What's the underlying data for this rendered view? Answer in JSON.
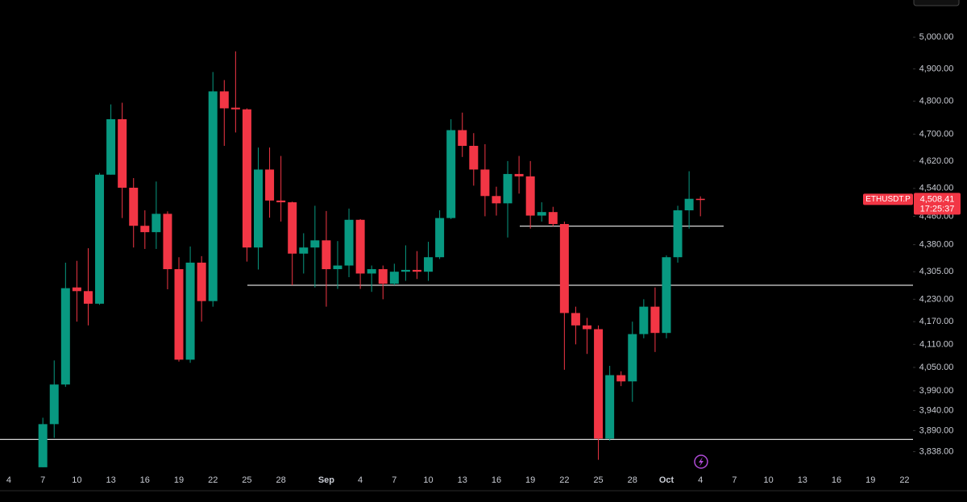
{
  "chart_data": {
    "type": "candlestick",
    "log_scale": true,
    "up_color": "#089981",
    "down_color": "#f23645",
    "x": [
      3,
      4,
      5,
      6,
      7,
      8,
      9,
      10,
      11,
      12,
      13,
      14,
      15,
      16,
      17,
      18,
      19,
      20,
      21,
      22,
      23,
      24,
      25,
      26,
      27,
      28,
      29,
      30,
      31,
      32,
      33,
      34,
      35,
      36,
      37,
      38,
      39,
      40,
      41,
      42,
      43,
      44,
      45,
      46,
      47,
      48,
      49,
      50,
      51,
      52,
      53,
      54,
      55,
      56,
      57,
      58,
      59,
      60,
      61
    ],
    "open": [
      3800,
      3906,
      4006,
      4262,
      4252,
      4218,
      4580,
      4745,
      4542,
      4433,
      4415,
      4467,
      4312,
      4070,
      4330,
      4225,
      4830,
      4780,
      4775,
      4372,
      4595,
      4505,
      4500,
      4355,
      4372,
      4392,
      4312,
      4322,
      4450,
      4300,
      4312,
      4272,
      4305,
      4310,
      4305,
      4345,
      4455,
      4712,
      4665,
      4595,
      4518,
      4497,
      4582,
      4575,
      4462,
      4472,
      4438,
      4193,
      4160,
      4150,
      3870,
      4030,
      4014,
      4137,
      4210,
      4140,
      4345,
      4477,
      4510
    ],
    "high": [
      3922,
      4068,
      4330,
      4335,
      4370,
      4585,
      4790,
      4795,
      4570,
      4477,
      4560,
      4474,
      4345,
      4375,
      4348,
      4890,
      4865,
      4955,
      4778,
      4660,
      4660,
      4635,
      4502,
      4412,
      4490,
      4475,
      4390,
      4482,
      4452,
      4322,
      4322,
      4327,
      4378,
      4362,
      4388,
      4477,
      4745,
      4765,
      4703,
      4670,
      4545,
      4620,
      4635,
      4620,
      4500,
      4487,
      4445,
      4210,
      4180,
      4160,
      4054,
      4040,
      4170,
      4230,
      4262,
      4350,
      4490,
      4590,
      4517
    ],
    "low": [
      3800,
      3872,
      4000,
      4170,
      4160,
      4215,
      4580,
      4455,
      4372,
      4368,
      4368,
      4257,
      4065,
      4062,
      4170,
      4210,
      4665,
      4705,
      4333,
      4311,
      4456,
      4445,
      4268,
      4300,
      4262,
      4210,
      4258,
      4290,
      4258,
      4250,
      4230,
      4268,
      4280,
      4285,
      4280,
      4340,
      4452,
      4632,
      4548,
      4460,
      4462,
      4400,
      4525,
      4425,
      4445,
      4432,
      4044,
      4110,
      4085,
      3818,
      3865,
      4002,
      3962,
      4126,
      4090,
      4126,
      4330,
      4425,
      4460
    ],
    "close": [
      3906,
      4006,
      4260,
      4252,
      4218,
      4580,
      4745,
      4542,
      4433,
      4415,
      4467,
      4312,
      4070,
      4330,
      4225,
      4830,
      4778,
      4775,
      4372,
      4595,
      4505,
      4500,
      4355,
      4372,
      4392,
      4312,
      4322,
      4450,
      4300,
      4312,
      4272,
      4305,
      4310,
      4305,
      4345,
      4455,
      4712,
      4665,
      4595,
      4518,
      4497,
      4582,
      4575,
      4462,
      4472,
      4438,
      4193,
      4160,
      4150,
      3870,
      4030,
      4014,
      4137,
      4210,
      4140,
      4345,
      4477,
      4510,
      4508.41
    ],
    "xlim": [
      -0.78,
      79.75
    ],
    "xticks": [
      {
        "value": 0,
        "label": "4"
      },
      {
        "value": 3,
        "label": "7"
      },
      {
        "value": 6,
        "label": "10"
      },
      {
        "value": 9,
        "label": "13"
      },
      {
        "value": 12,
        "label": "16"
      },
      {
        "value": 15,
        "label": "19"
      },
      {
        "value": 18,
        "label": "22"
      },
      {
        "value": 21,
        "label": "25"
      },
      {
        "value": 24,
        "label": "28"
      },
      {
        "value": 28,
        "label": "Sep"
      },
      {
        "value": 31,
        "label": "4"
      },
      {
        "value": 34,
        "label": "7"
      },
      {
        "value": 37,
        "label": "10"
      },
      {
        "value": 40,
        "label": "13"
      },
      {
        "value": 43,
        "label": "16"
      },
      {
        "value": 46,
        "label": "19"
      },
      {
        "value": 49,
        "label": "22"
      },
      {
        "value": 52,
        "label": "25"
      },
      {
        "value": 55,
        "label": "28"
      },
      {
        "value": 58,
        "label": "Oct"
      },
      {
        "value": 61,
        "label": "4"
      },
      {
        "value": 64,
        "label": "7"
      },
      {
        "value": 67,
        "label": "10"
      },
      {
        "value": 70,
        "label": "13"
      },
      {
        "value": 73,
        "label": "16"
      },
      {
        "value": 76,
        "label": "19"
      },
      {
        "value": 79,
        "label": "22"
      }
    ],
    "ylim": [
      3790,
      5120
    ],
    "yticks": [
      {
        "value": 5000,
        "label": "5,000.00"
      },
      {
        "value": 4900,
        "label": "4,900.00"
      },
      {
        "value": 4800,
        "label": "4,800.00"
      },
      {
        "value": 4700,
        "label": "4,700.00"
      },
      {
        "value": 4620,
        "label": "4,620.00"
      },
      {
        "value": 4540,
        "label": "4,540.00"
      },
      {
        "value": 4460,
        "label": "4,460.00"
      },
      {
        "value": 4380,
        "label": "4,380.00"
      },
      {
        "value": 4305,
        "label": "4,305.00"
      },
      {
        "value": 4230,
        "label": "4,230.00"
      },
      {
        "value": 4170,
        "label": "4,170.00"
      },
      {
        "value": 4110,
        "label": "4,110.00"
      },
      {
        "value": 4050,
        "label": "4,050.00"
      },
      {
        "value": 3990,
        "label": "3,990.00"
      },
      {
        "value": 3940,
        "label": "3,940.00"
      },
      {
        "value": 3890,
        "label": "3,890.00"
      },
      {
        "value": 3838,
        "label": "3,838.00"
      }
    ],
    "levels": [
      4432,
      4268,
      3868
    ],
    "last_price": {
      "symbol": "ETHUSDT.P",
      "value": 4508.41,
      "label": "4,508.41",
      "countdown": "17:25:37"
    }
  }
}
